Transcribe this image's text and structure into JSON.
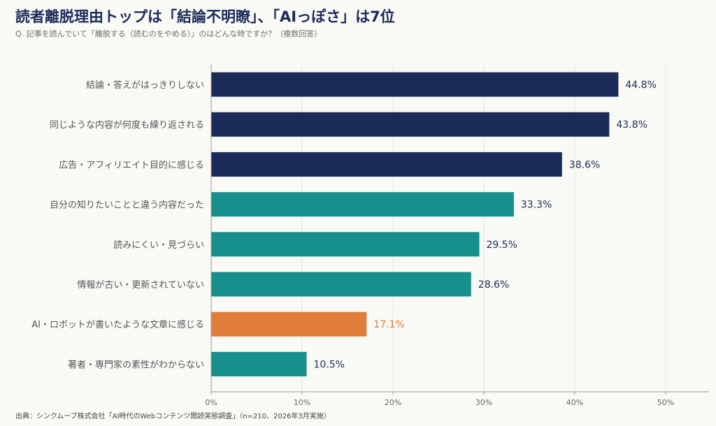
{
  "title": "読者離脱理由トップは「結論不明瞭」、「AIっぽさ」は7位",
  "subtitle": "Q. 記事を読んでいて「離脱する（読むのをやめる）」のはどんな時ですか？（複数回答）",
  "source": "出典：シンクムーブ株式会社「AI時代のWebコンテンツ閲読実態調査」（n=210、2026年3月実施）",
  "colors": {
    "navy": "#1b2b59",
    "teal": "#168f8d",
    "orange": "#e07d3a",
    "grid": "#e4e4e0",
    "axis": "#999999"
  },
  "chart_data": {
    "type": "bar",
    "orientation": "horizontal",
    "categories": [
      "結論・答えがはっきりしない",
      "同じような内容が何度も繰り返される",
      "広告・アフィリエイト目的に感じる",
      "自分の知りたいことと違う内容だった",
      "読みにくい・見づらい",
      "情報が古い・更新されていない",
      "AI・ロボットが書いたような文章に感じる",
      "著者・専門家の素性がわからない"
    ],
    "values": [
      44.8,
      43.8,
      38.6,
      33.3,
      29.5,
      28.6,
      17.1,
      10.5
    ],
    "value_labels": [
      "44.8%",
      "43.8%",
      "38.6%",
      "33.3%",
      "29.5%",
      "28.6%",
      "17.1%",
      "10.5%"
    ],
    "bar_colors": [
      "navy",
      "navy",
      "navy",
      "teal",
      "teal",
      "teal",
      "orange",
      "teal"
    ],
    "xlim": [
      0,
      55
    ],
    "xticks": [
      0,
      10,
      20,
      30,
      40,
      50
    ],
    "xtick_labels": [
      "0%",
      "10%",
      "20%",
      "30%",
      "40%",
      "50%"
    ],
    "grid": true
  }
}
